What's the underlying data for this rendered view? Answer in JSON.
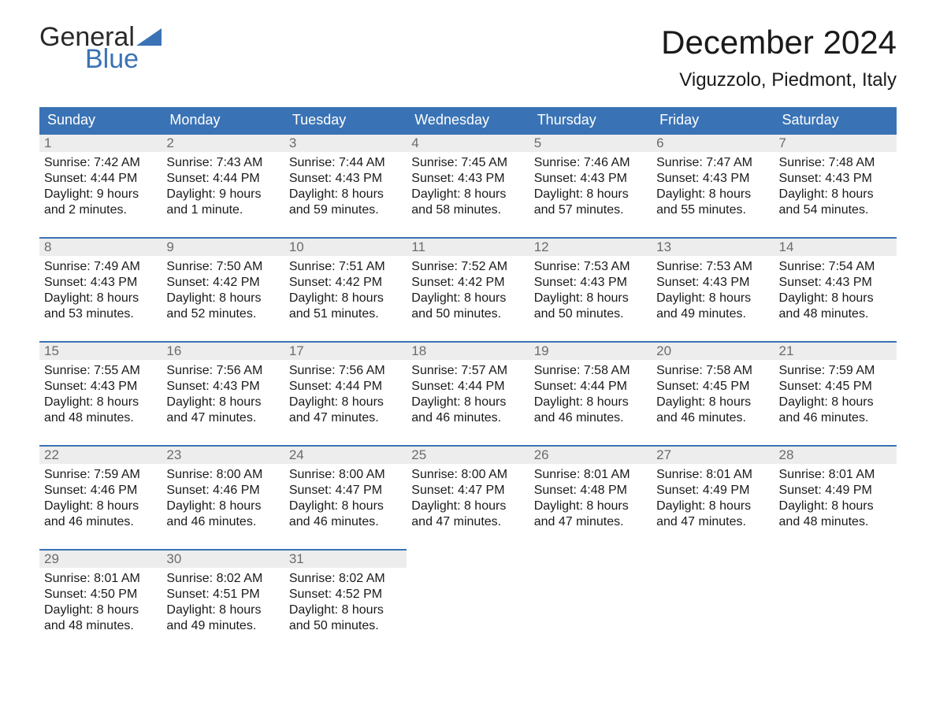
{
  "brand": {
    "word1": "General",
    "word2": "Blue",
    "text_color": "#2a2a2a",
    "accent_color": "#3a73b5"
  },
  "header": {
    "month_title": "December 2024",
    "location": "Viguzzolo, Piedmont, Italy",
    "title_fontsize": 42,
    "location_fontsize": 24
  },
  "calendar": {
    "header_bg": "#3a73b5",
    "header_fg": "#ffffff",
    "daynum_bg": "#ededed",
    "daynum_fg": "#6b6b6b",
    "rule_color": "#3a73b5",
    "body_color": "#1a1a1a",
    "body_fontsize": 16,
    "columns": [
      "Sunday",
      "Monday",
      "Tuesday",
      "Wednesday",
      "Thursday",
      "Friday",
      "Saturday"
    ],
    "weeks": [
      [
        {
          "n": "1",
          "sr": "7:42 AM",
          "ss": "4:44 PM",
          "dl": "9 hours and 2 minutes."
        },
        {
          "n": "2",
          "sr": "7:43 AM",
          "ss": "4:44 PM",
          "dl": "9 hours and 1 minute."
        },
        {
          "n": "3",
          "sr": "7:44 AM",
          "ss": "4:43 PM",
          "dl": "8 hours and 59 minutes."
        },
        {
          "n": "4",
          "sr": "7:45 AM",
          "ss": "4:43 PM",
          "dl": "8 hours and 58 minutes."
        },
        {
          "n": "5",
          "sr": "7:46 AM",
          "ss": "4:43 PM",
          "dl": "8 hours and 57 minutes."
        },
        {
          "n": "6",
          "sr": "7:47 AM",
          "ss": "4:43 PM",
          "dl": "8 hours and 55 minutes."
        },
        {
          "n": "7",
          "sr": "7:48 AM",
          "ss": "4:43 PM",
          "dl": "8 hours and 54 minutes."
        }
      ],
      [
        {
          "n": "8",
          "sr": "7:49 AM",
          "ss": "4:43 PM",
          "dl": "8 hours and 53 minutes."
        },
        {
          "n": "9",
          "sr": "7:50 AM",
          "ss": "4:42 PM",
          "dl": "8 hours and 52 minutes."
        },
        {
          "n": "10",
          "sr": "7:51 AM",
          "ss": "4:42 PM",
          "dl": "8 hours and 51 minutes."
        },
        {
          "n": "11",
          "sr": "7:52 AM",
          "ss": "4:42 PM",
          "dl": "8 hours and 50 minutes."
        },
        {
          "n": "12",
          "sr": "7:53 AM",
          "ss": "4:43 PM",
          "dl": "8 hours and 50 minutes."
        },
        {
          "n": "13",
          "sr": "7:53 AM",
          "ss": "4:43 PM",
          "dl": "8 hours and 49 minutes."
        },
        {
          "n": "14",
          "sr": "7:54 AM",
          "ss": "4:43 PM",
          "dl": "8 hours and 48 minutes."
        }
      ],
      [
        {
          "n": "15",
          "sr": "7:55 AM",
          "ss": "4:43 PM",
          "dl": "8 hours and 48 minutes."
        },
        {
          "n": "16",
          "sr": "7:56 AM",
          "ss": "4:43 PM",
          "dl": "8 hours and 47 minutes."
        },
        {
          "n": "17",
          "sr": "7:56 AM",
          "ss": "4:44 PM",
          "dl": "8 hours and 47 minutes."
        },
        {
          "n": "18",
          "sr": "7:57 AM",
          "ss": "4:44 PM",
          "dl": "8 hours and 46 minutes."
        },
        {
          "n": "19",
          "sr": "7:58 AM",
          "ss": "4:44 PM",
          "dl": "8 hours and 46 minutes."
        },
        {
          "n": "20",
          "sr": "7:58 AM",
          "ss": "4:45 PM",
          "dl": "8 hours and 46 minutes."
        },
        {
          "n": "21",
          "sr": "7:59 AM",
          "ss": "4:45 PM",
          "dl": "8 hours and 46 minutes."
        }
      ],
      [
        {
          "n": "22",
          "sr": "7:59 AM",
          "ss": "4:46 PM",
          "dl": "8 hours and 46 minutes."
        },
        {
          "n": "23",
          "sr": "8:00 AM",
          "ss": "4:46 PM",
          "dl": "8 hours and 46 minutes."
        },
        {
          "n": "24",
          "sr": "8:00 AM",
          "ss": "4:47 PM",
          "dl": "8 hours and 46 minutes."
        },
        {
          "n": "25",
          "sr": "8:00 AM",
          "ss": "4:47 PM",
          "dl": "8 hours and 47 minutes."
        },
        {
          "n": "26",
          "sr": "8:01 AM",
          "ss": "4:48 PM",
          "dl": "8 hours and 47 minutes."
        },
        {
          "n": "27",
          "sr": "8:01 AM",
          "ss": "4:49 PM",
          "dl": "8 hours and 47 minutes."
        },
        {
          "n": "28",
          "sr": "8:01 AM",
          "ss": "4:49 PM",
          "dl": "8 hours and 48 minutes."
        }
      ],
      [
        {
          "n": "29",
          "sr": "8:01 AM",
          "ss": "4:50 PM",
          "dl": "8 hours and 48 minutes."
        },
        {
          "n": "30",
          "sr": "8:02 AM",
          "ss": "4:51 PM",
          "dl": "8 hours and 49 minutes."
        },
        {
          "n": "31",
          "sr": "8:02 AM",
          "ss": "4:52 PM",
          "dl": "8 hours and 50 minutes."
        },
        null,
        null,
        null,
        null
      ]
    ],
    "labels": {
      "sunrise": "Sunrise: ",
      "sunset": "Sunset: ",
      "daylight": "Daylight: "
    }
  }
}
